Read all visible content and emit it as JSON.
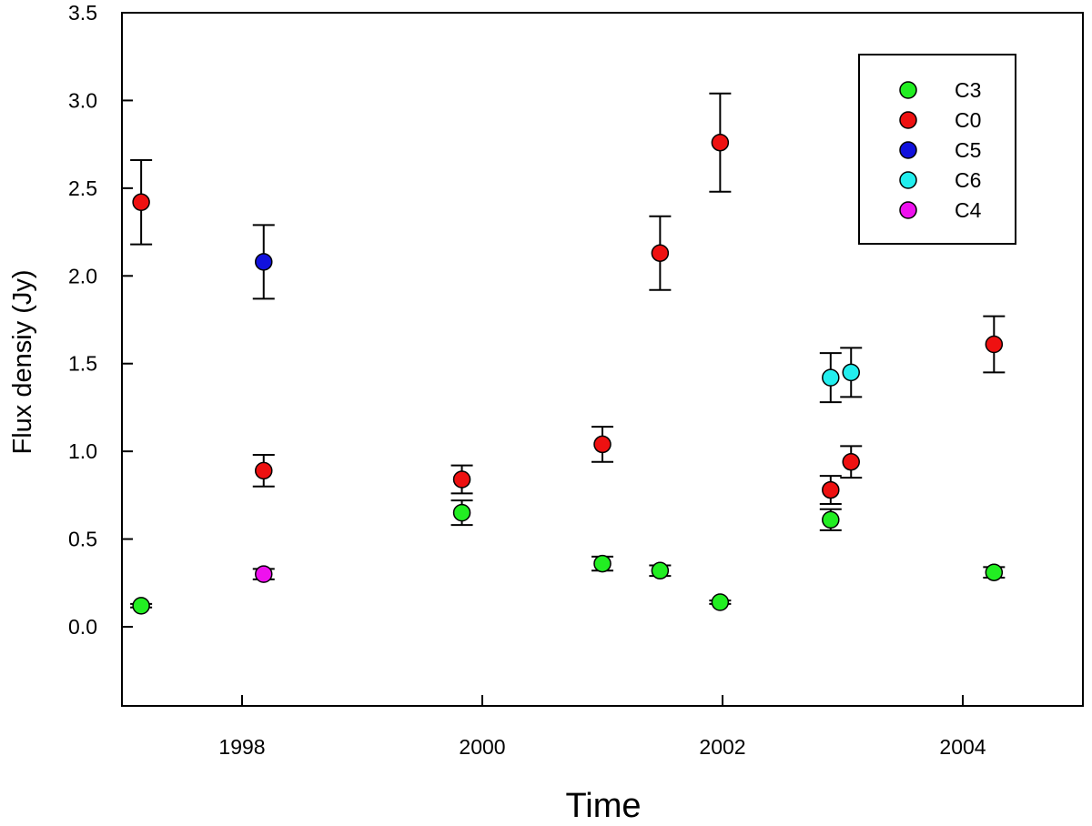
{
  "chart_data": {
    "type": "scatter",
    "title": "",
    "xlabel": "Time",
    "ylabel": "Flux densiy (Jy)",
    "xlim": [
      1997.0,
      2005.0
    ],
    "ylim": [
      -0.45,
      3.5
    ],
    "x_ticks": [
      1998,
      2000,
      2002,
      2004
    ],
    "x_tick_labels": [
      "1998",
      "2000",
      "2002",
      "2004"
    ],
    "y_ticks": [
      0.0,
      0.5,
      1.0,
      1.5,
      2.0,
      2.5,
      3.0,
      3.5
    ],
    "y_tick_labels": [
      "0.0",
      "0.5",
      "1.0",
      "1.5",
      "2.0",
      "2.5",
      "3.0",
      "3.5"
    ],
    "grid": false,
    "legend_position": "top-right",
    "series": [
      {
        "name": "C3",
        "color": "#22ee22",
        "points": [
          {
            "x": 1997.16,
            "y": 0.12,
            "err": 0.01
          },
          {
            "x": 1999.83,
            "y": 0.65,
            "err": 0.07
          },
          {
            "x": 2001.0,
            "y": 0.36,
            "err": 0.04
          },
          {
            "x": 2001.48,
            "y": 0.32,
            "err": 0.03
          },
          {
            "x": 2001.98,
            "y": 0.14,
            "err": 0.01
          },
          {
            "x": 2002.9,
            "y": 0.61,
            "err": 0.06
          },
          {
            "x": 2004.26,
            "y": 0.31,
            "err": 0.03
          }
        ]
      },
      {
        "name": "C0",
        "color": "#ee1111",
        "points": [
          {
            "x": 1997.16,
            "y": 2.42,
            "err": 0.24
          },
          {
            "x": 1998.18,
            "y": 0.89,
            "err": 0.09
          },
          {
            "x": 1999.83,
            "y": 0.84,
            "err": 0.08
          },
          {
            "x": 2001.0,
            "y": 1.04,
            "err": 0.1
          },
          {
            "x": 2001.48,
            "y": 2.13,
            "err": 0.21
          },
          {
            "x": 2001.98,
            "y": 2.76,
            "err": 0.28
          },
          {
            "x": 2002.9,
            "y": 0.78,
            "err": 0.08
          },
          {
            "x": 2003.07,
            "y": 0.94,
            "err": 0.09
          },
          {
            "x": 2004.26,
            "y": 1.61,
            "err": 0.16
          }
        ]
      },
      {
        "name": "C5",
        "color": "#1111dd",
        "points": [
          {
            "x": 1998.18,
            "y": 2.08,
            "err": 0.21
          }
        ]
      },
      {
        "name": "C6",
        "color": "#22eeee",
        "points": [
          {
            "x": 2002.9,
            "y": 1.42,
            "err": 0.14
          },
          {
            "x": 2003.07,
            "y": 1.45,
            "err": 0.14
          }
        ]
      },
      {
        "name": "C4",
        "color": "#ee11ee",
        "points": [
          {
            "x": 1998.18,
            "y": 0.3,
            "err": 0.03
          }
        ]
      }
    ]
  }
}
